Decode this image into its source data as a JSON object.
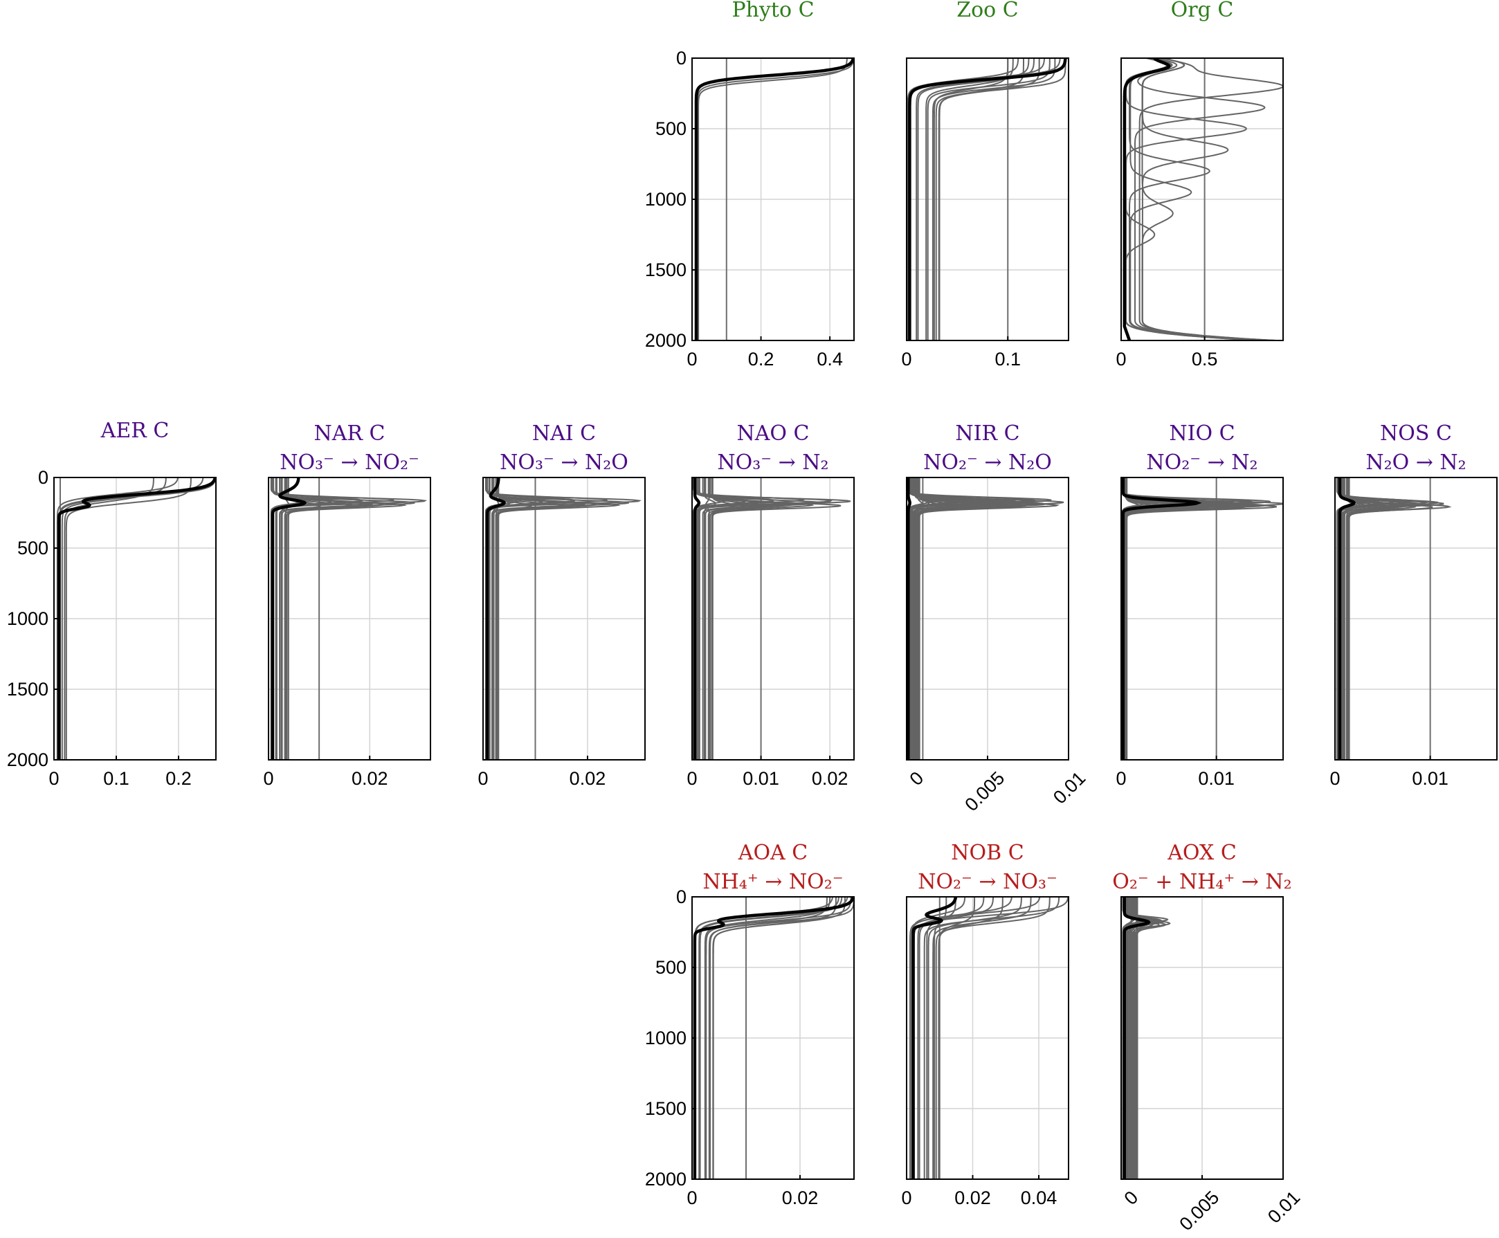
{
  "colors": {
    "green": "#2e7d1a",
    "purple": "#4b0c85",
    "red": "#b71c1c",
    "median": "#000000",
    "member": "#646464",
    "grid": "#d4d4d4"
  },
  "chart_data": [
    {
      "type": "line",
      "id": "phyto",
      "row": 0,
      "col": 3,
      "title": "Phyto C",
      "subtitle": "",
      "color_key": "green",
      "xlim": [
        0,
        0.47
      ],
      "ylim": [
        2000,
        0
      ],
      "xticks": [
        0,
        0.2,
        0.4
      ],
      "xtick_labels": [
        "0",
        "0.2",
        "0.4"
      ],
      "yticks": [
        0,
        500,
        1000,
        1500,
        2000
      ],
      "ytick_labels": [
        "0",
        "500",
        "1000",
        "1500",
        "2000"
      ],
      "show_yticks": true,
      "rotate_xticks": false,
      "vline": 0.1,
      "profile": {
        "kind": "surface",
        "surface": 0.47,
        "depth": 120,
        "deep": 0.012
      },
      "members": {
        "kind": "surface",
        "n": 2,
        "surface_min": 0.45,
        "surface_max": 0.47,
        "depth": 130,
        "deep_min": 0.01,
        "deep_max": 0.02
      }
    },
    {
      "type": "line",
      "id": "zoo",
      "row": 0,
      "col": 4,
      "title": "Zoo C",
      "subtitle": "",
      "color_key": "green",
      "xlim": [
        0,
        0.16
      ],
      "ylim": [
        2000,
        0
      ],
      "xticks": [
        0,
        0.1
      ],
      "xtick_labels": [
        "0",
        "0.1"
      ],
      "yticks": [
        0,
        500,
        1000,
        1500,
        2000
      ],
      "ytick_labels": [],
      "show_yticks": false,
      "rotate_xticks": false,
      "vline": 0.1,
      "profile": {
        "kind": "surface",
        "surface": 0.157,
        "depth": 150,
        "deep": 0.003
      },
      "members": {
        "kind": "surface",
        "n": 12,
        "surface_min": 0.1,
        "surface_max": 0.157,
        "depth": 180,
        "deep_min": 0.001,
        "deep_max": 0.033
      }
    },
    {
      "type": "line",
      "id": "org",
      "row": 0,
      "col": 5,
      "title": "Org C",
      "subtitle": "",
      "color_key": "green",
      "xlim": [
        0,
        0.97
      ],
      "ylim": [
        2000,
        0
      ],
      "xticks": [
        0,
        0.5
      ],
      "xtick_labels": [
        "0",
        "0.5"
      ],
      "yticks": [
        0,
        500,
        1000,
        1500,
        2000
      ],
      "ytick_labels": [],
      "show_yticks": false,
      "rotate_xticks": false,
      "vline": 0.5,
      "profile": {
        "kind": "org",
        "surface": 0.3,
        "depth": 120,
        "deep": 0.02
      },
      "members": {
        "kind": "org",
        "n": 8,
        "surface_min": 0.2,
        "surface_max": 0.97,
        "depth": 200,
        "deep_min": 0.02,
        "deep_max": 0.13
      }
    },
    {
      "type": "line",
      "id": "aer",
      "row": 1,
      "col": 0,
      "title": "AER C",
      "subtitle": "",
      "color_key": "purple",
      "xlim": [
        0,
        0.26
      ],
      "ylim": [
        2000,
        0
      ],
      "xticks": [
        0,
        0.1,
        0.2
      ],
      "xtick_labels": [
        "0",
        "0.1",
        "0.2"
      ],
      "yticks": [
        0,
        500,
        1000,
        1500,
        2000
      ],
      "ytick_labels": [
        "0",
        "500",
        "1000",
        "1500",
        "2000"
      ],
      "show_yticks": true,
      "rotate_xticks": false,
      "vline": 0.01,
      "profile": {
        "kind": "surfpeak",
        "surface": 0.26,
        "depth": 120,
        "peak": 0.05,
        "peak_depth": 200,
        "deep": 0.008
      },
      "members": {
        "kind": "surface",
        "n": 6,
        "surface_min": 0.16,
        "surface_max": 0.26,
        "depth": 140,
        "deep_min": 0.004,
        "deep_max": 0.02
      }
    },
    {
      "type": "line",
      "id": "nar",
      "row": 1,
      "col": 1,
      "title": "NAR C",
      "subtitle": "NO₃⁻ → NO₂⁻",
      "color_key": "purple",
      "xlim": [
        0,
        0.032
      ],
      "ylim": [
        2000,
        0
      ],
      "xticks": [
        0,
        0.02
      ],
      "xtick_labels": [
        "0",
        "0.02"
      ],
      "yticks": [
        0,
        500,
        1000,
        1500,
        2000
      ],
      "ytick_labels": [],
      "show_yticks": false,
      "rotate_xticks": false,
      "vline": 0.01,
      "profile": {
        "kind": "surfpeak",
        "surface": 0.006,
        "depth": 100,
        "peak": 0.007,
        "peak_depth": 180,
        "deep": 0.0008
      },
      "members": {
        "kind": "peak",
        "n": 14,
        "peak_min": 0.004,
        "peak_max": 0.031,
        "peak_depth": 180,
        "deep_min": 0.0005,
        "deep_max": 0.004
      }
    },
    {
      "type": "line",
      "id": "nai",
      "row": 1,
      "col": 2,
      "title": "NAI C",
      "subtitle": "NO₃⁻ → N₂O",
      "color_key": "purple",
      "xlim": [
        0,
        0.031
      ],
      "ylim": [
        2000,
        0
      ],
      "xticks": [
        0,
        0.02
      ],
      "xtick_labels": [
        "0",
        "0.02"
      ],
      "yticks": [
        0,
        500,
        1000,
        1500,
        2000
      ],
      "ytick_labels": [],
      "show_yticks": false,
      "rotate_xticks": false,
      "vline": 0.01,
      "profile": {
        "kind": "surfpeak",
        "surface": 0.003,
        "depth": 100,
        "peak": 0.004,
        "peak_depth": 180,
        "deep": 0.0008
      },
      "members": {
        "kind": "peak",
        "n": 14,
        "peak_min": 0.003,
        "peak_max": 0.03,
        "peak_depth": 180,
        "deep_min": 0.0005,
        "deep_max": 0.003
      }
    },
    {
      "type": "line",
      "id": "nao",
      "row": 1,
      "col": 3,
      "title": "NAO C",
      "subtitle": "NO₃⁻ → N₂",
      "color_key": "purple",
      "xlim": [
        0,
        0.0235
      ],
      "ylim": [
        2000,
        0
      ],
      "xticks": [
        0,
        0.01,
        0.02
      ],
      "xtick_labels": [
        "0",
        "0.01",
        "0.02"
      ],
      "yticks": [
        0,
        500,
        1000,
        1500,
        2000
      ],
      "ytick_labels": [],
      "show_yticks": false,
      "rotate_xticks": false,
      "vline": 0.01,
      "profile": {
        "kind": "peak",
        "peak": 0.001,
        "peak_depth": 180,
        "deep": 0.0004
      },
      "members": {
        "kind": "peak",
        "n": 16,
        "peak_min": 0.002,
        "peak_max": 0.023,
        "peak_depth": 180,
        "deep_min": 0.0002,
        "deep_max": 0.003
      }
    },
    {
      "type": "line",
      "id": "nir",
      "row": 1,
      "col": 4,
      "title": "NIR C",
      "subtitle": "NO₂⁻ → N₂O",
      "color_key": "purple",
      "xlim": [
        0,
        0.01
      ],
      "ylim": [
        2000,
        0
      ],
      "xticks": [
        0,
        0.005,
        0.01
      ],
      "xtick_labels": [
        "0",
        "0.005",
        "0.01"
      ],
      "yticks": [
        0,
        500,
        1000,
        1500,
        2000
      ],
      "ytick_labels": [],
      "show_yticks": false,
      "rotate_xticks": true,
      "vline": 0.001,
      "profile": {
        "kind": "peak",
        "peak": 0.0002,
        "peak_depth": 180,
        "deep": 0.0001
      },
      "members": {
        "kind": "peak",
        "n": 24,
        "peak_min": 0.001,
        "peak_max": 0.0097,
        "peak_depth": 180,
        "deep_min": 0.0001,
        "deep_max": 0.0008
      }
    },
    {
      "type": "line",
      "id": "nio",
      "row": 1,
      "col": 5,
      "title": "NIO C",
      "subtitle": "NO₂⁻ → N₂",
      "color_key": "purple",
      "xlim": [
        0,
        0.017
      ],
      "ylim": [
        2000,
        0
      ],
      "xticks": [
        0,
        0.01
      ],
      "xtick_labels": [
        "0",
        "0.01"
      ],
      "yticks": [
        0,
        500,
        1000,
        1500,
        2000
      ],
      "ytick_labels": [],
      "show_yticks": false,
      "rotate_xticks": false,
      "vline": 0.01,
      "profile": {
        "kind": "peak",
        "peak": 0.008,
        "peak_depth": 180,
        "deep": 0.0002
      },
      "members": {
        "kind": "peak",
        "n": 24,
        "peak_min": 0.002,
        "peak_max": 0.017,
        "peak_depth": 190,
        "deep_min": 0.0001,
        "deep_max": 0.0006
      }
    },
    {
      "type": "line",
      "id": "nos",
      "row": 1,
      "col": 6,
      "title": "NOS C",
      "subtitle": "N₂O → N₂",
      "color_key": "purple",
      "xlim": [
        0,
        0.017
      ],
      "ylim": [
        2000,
        0
      ],
      "xticks": [
        0,
        0.01
      ],
      "xtick_labels": [
        "0",
        "0.01"
      ],
      "yticks": [
        0,
        500,
        1000,
        1500,
        2000
      ],
      "ytick_labels": [],
      "show_yticks": false,
      "rotate_xticks": false,
      "vline": 0.01,
      "profile": {
        "kind": "peak",
        "peak": 0.002,
        "peak_depth": 180,
        "deep": 0.0005
      },
      "members": {
        "kind": "peak",
        "n": 18,
        "peak_min": 0.002,
        "peak_max": 0.012,
        "peak_depth": 190,
        "deep_min": 0.0002,
        "deep_max": 0.0015
      }
    },
    {
      "type": "line",
      "id": "aoa",
      "row": 2,
      "col": 3,
      "title": "AOA C",
      "subtitle": "NH₄⁺ → NO₂⁻",
      "color_key": "red",
      "xlim": [
        0,
        0.03
      ],
      "ylim": [
        2000,
        0
      ],
      "xticks": [
        0,
        0.02
      ],
      "xtick_labels": [
        "0",
        "0.02"
      ],
      "yticks": [
        0,
        500,
        1000,
        1500,
        2000
      ],
      "ytick_labels": [
        "0",
        "500",
        "1000",
        "1500",
        "2000"
      ],
      "show_yticks": true,
      "rotate_xticks": false,
      "vline": 0.01,
      "profile": {
        "kind": "surfpeak",
        "surface": 0.03,
        "depth": 120,
        "peak": 0.005,
        "peak_depth": 200,
        "deep": 0.0005
      },
      "members": {
        "kind": "surface",
        "n": 10,
        "surface_min": 0.025,
        "surface_max": 0.03,
        "depth": 150,
        "deep_min": 0.0003,
        "deep_max": 0.004
      }
    },
    {
      "type": "line",
      "id": "nob",
      "row": 2,
      "col": 4,
      "title": "NOB C",
      "subtitle": "NO₂⁻ → NO₃⁻",
      "color_key": "red",
      "xlim": [
        0,
        0.049
      ],
      "ylim": [
        2000,
        0
      ],
      "xticks": [
        0,
        0.02,
        0.04
      ],
      "xtick_labels": [
        "0",
        "0.02",
        "0.04"
      ],
      "yticks": [
        0,
        500,
        1000,
        1500,
        2000
      ],
      "ytick_labels": [],
      "show_yticks": false,
      "rotate_xticks": false,
      "vline": 0.01,
      "profile": {
        "kind": "surfpeak",
        "surface": 0.015,
        "depth": 100,
        "peak": 0.01,
        "peak_depth": 170,
        "deep": 0.002
      },
      "members": {
        "kind": "surface",
        "n": 14,
        "surface_min": 0.012,
        "surface_max": 0.049,
        "depth": 150,
        "deep_min": 0.001,
        "deep_max": 0.01
      }
    },
    {
      "type": "line",
      "id": "aox",
      "row": 2,
      "col": 5,
      "title": "AOX C",
      "subtitle": "O₂⁻ + NH₄⁺ → N₂",
      "color_key": "red",
      "xlim": [
        0,
        0.01
      ],
      "ylim": [
        2000,
        0
      ],
      "xticks": [
        0,
        0.005,
        0.01
      ],
      "xtick_labels": [
        "0",
        "0.005",
        "0.01"
      ],
      "yticks": [
        0,
        500,
        1000,
        1500,
        2000
      ],
      "ytick_labels": [],
      "show_yticks": false,
      "rotate_xticks": true,
      "vline": 0.001,
      "profile": {
        "kind": "peak",
        "peak": 0.0017,
        "peak_depth": 180,
        "deep": 0.0002
      },
      "members": {
        "kind": "peak",
        "n": 20,
        "peak_min": 0.0005,
        "peak_max": 0.003,
        "peak_depth": 180,
        "deep_min": 0.0001,
        "deep_max": 0.001
      }
    }
  ]
}
